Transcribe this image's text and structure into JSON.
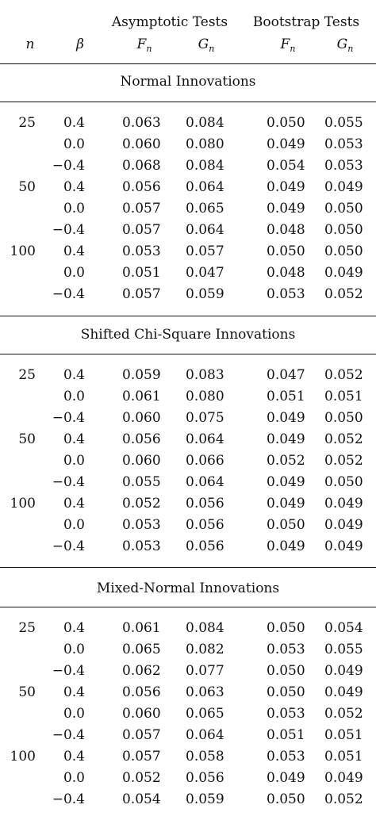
{
  "header": {
    "group_asymptotic": "Asymptotic Tests",
    "group_bootstrap": "Bootstrap Tests",
    "col_n": "n",
    "col_beta": "β",
    "col_f_base": "F",
    "col_g_base": "G",
    "subscript": "n"
  },
  "sections": [
    {
      "title": "Normal Innovations",
      "rows": [
        {
          "n": "25",
          "beta": "0.4",
          "asym_f": "0.063",
          "asym_g": "0.084",
          "boot_f": "0.050",
          "boot_g": "0.055"
        },
        {
          "n": "",
          "beta": "0.0",
          "asym_f": "0.060",
          "asym_g": "0.080",
          "boot_f": "0.049",
          "boot_g": "0.053"
        },
        {
          "n": "",
          "beta": "−0.4",
          "asym_f": "0.068",
          "asym_g": "0.084",
          "boot_f": "0.054",
          "boot_g": "0.053"
        },
        {
          "n": "50",
          "beta": "0.4",
          "asym_f": "0.056",
          "asym_g": "0.064",
          "boot_f": "0.049",
          "boot_g": "0.049"
        },
        {
          "n": "",
          "beta": "0.0",
          "asym_f": "0.057",
          "asym_g": "0.065",
          "boot_f": "0.049",
          "boot_g": "0.050"
        },
        {
          "n": "",
          "beta": "−0.4",
          "asym_f": "0.057",
          "asym_g": "0.064",
          "boot_f": "0.048",
          "boot_g": "0.050"
        },
        {
          "n": "100",
          "beta": "0.4",
          "asym_f": "0.053",
          "asym_g": "0.057",
          "boot_f": "0.050",
          "boot_g": "0.050"
        },
        {
          "n": "",
          "beta": "0.0",
          "asym_f": "0.051",
          "asym_g": "0.047",
          "boot_f": "0.048",
          "boot_g": "0.049"
        },
        {
          "n": "",
          "beta": "−0.4",
          "asym_f": "0.057",
          "asym_g": "0.059",
          "boot_f": "0.053",
          "boot_g": "0.052"
        }
      ]
    },
    {
      "title": "Shifted Chi-Square Innovations",
      "rows": [
        {
          "n": "25",
          "beta": "0.4",
          "asym_f": "0.059",
          "asym_g": "0.083",
          "boot_f": "0.047",
          "boot_g": "0.052"
        },
        {
          "n": "",
          "beta": "0.0",
          "asym_f": "0.061",
          "asym_g": "0.080",
          "boot_f": "0.051",
          "boot_g": "0.051"
        },
        {
          "n": "",
          "beta": "−0.4",
          "asym_f": "0.060",
          "asym_g": "0.075",
          "boot_f": "0.049",
          "boot_g": "0.050"
        },
        {
          "n": "50",
          "beta": "0.4",
          "asym_f": "0.056",
          "asym_g": "0.064",
          "boot_f": "0.049",
          "boot_g": "0.052"
        },
        {
          "n": "",
          "beta": "0.0",
          "asym_f": "0.060",
          "asym_g": "0.066",
          "boot_f": "0.052",
          "boot_g": "0.052"
        },
        {
          "n": "",
          "beta": "−0.4",
          "asym_f": "0.055",
          "asym_g": "0.064",
          "boot_f": "0.049",
          "boot_g": "0.050"
        },
        {
          "n": "100",
          "beta": "0.4",
          "asym_f": "0.052",
          "asym_g": "0.056",
          "boot_f": "0.049",
          "boot_g": "0.049"
        },
        {
          "n": "",
          "beta": "0.0",
          "asym_f": "0.053",
          "asym_g": "0.056",
          "boot_f": "0.050",
          "boot_g": "0.049"
        },
        {
          "n": "",
          "beta": "−0.4",
          "asym_f": "0.053",
          "asym_g": "0.056",
          "boot_f": "0.049",
          "boot_g": "0.049"
        }
      ]
    },
    {
      "title": "Mixed-Normal Innovations",
      "rows": [
        {
          "n": "25",
          "beta": "0.4",
          "asym_f": "0.061",
          "asym_g": "0.084",
          "boot_f": "0.050",
          "boot_g": "0.054"
        },
        {
          "n": "",
          "beta": "0.0",
          "asym_f": "0.065",
          "asym_g": "0.082",
          "boot_f": "0.053",
          "boot_g": "0.055"
        },
        {
          "n": "",
          "beta": "−0.4",
          "asym_f": "0.062",
          "asym_g": "0.077",
          "boot_f": "0.050",
          "boot_g": "0.049"
        },
        {
          "n": "50",
          "beta": "0.4",
          "asym_f": "0.056",
          "asym_g": "0.063",
          "boot_f": "0.050",
          "boot_g": "0.049"
        },
        {
          "n": "",
          "beta": "0.0",
          "asym_f": "0.060",
          "asym_g": "0.065",
          "boot_f": "0.053",
          "boot_g": "0.052"
        },
        {
          "n": "",
          "beta": "−0.4",
          "asym_f": "0.057",
          "asym_g": "0.064",
          "boot_f": "0.051",
          "boot_g": "0.051"
        },
        {
          "n": "100",
          "beta": "0.4",
          "asym_f": "0.057",
          "asym_g": "0.058",
          "boot_f": "0.053",
          "boot_g": "0.051"
        },
        {
          "n": "",
          "beta": "0.0",
          "asym_f": "0.052",
          "asym_g": "0.056",
          "boot_f": "0.049",
          "boot_g": "0.049"
        },
        {
          "n": "",
          "beta": "−0.4",
          "asym_f": "0.054",
          "asym_g": "0.059",
          "boot_f": "0.050",
          "boot_g": "0.052"
        }
      ]
    }
  ]
}
